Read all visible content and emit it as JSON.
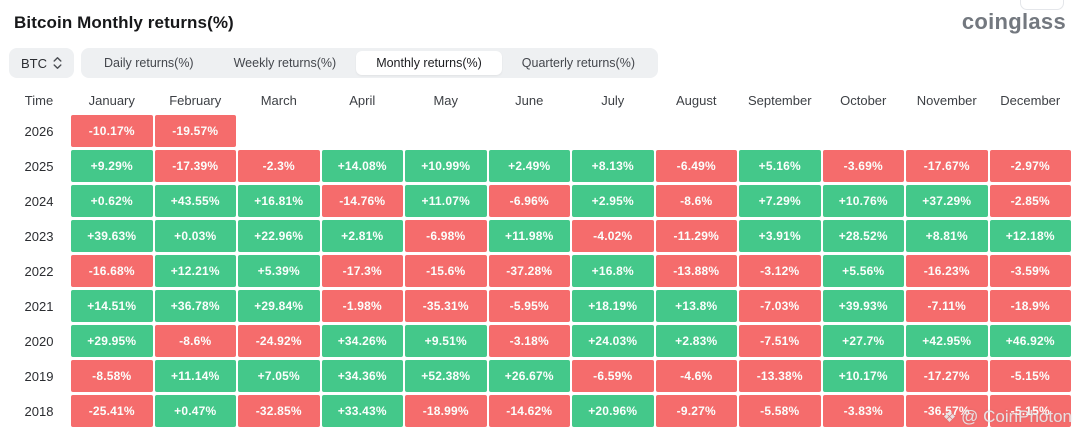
{
  "page": {
    "title": "Bitcoin Monthly returns(%)",
    "logo": "coinglass"
  },
  "toolbar": {
    "symbol": "BTC",
    "tabs": [
      {
        "label": "Daily returns(%)",
        "active": false
      },
      {
        "label": "Weekly returns(%)",
        "active": false
      },
      {
        "label": "Monthly returns(%)",
        "active": true
      },
      {
        "label": "Quarterly returns(%)",
        "active": false
      }
    ]
  },
  "table": {
    "time_header": "Time",
    "months": [
      "January",
      "February",
      "March",
      "April",
      "May",
      "June",
      "July",
      "August",
      "September",
      "October",
      "November",
      "December"
    ],
    "rows": [
      {
        "year": "2026",
        "cells": [
          "-10.17%",
          "-19.57%",
          null,
          null,
          null,
          null,
          null,
          null,
          null,
          null,
          null,
          null
        ]
      },
      {
        "year": "2025",
        "cells": [
          "+9.29%",
          "-17.39%",
          "-2.3%",
          "+14.08%",
          "+10.99%",
          "+2.49%",
          "+8.13%",
          "-6.49%",
          "+5.16%",
          "-3.69%",
          "-17.67%",
          "-2.97%"
        ]
      },
      {
        "year": "2024",
        "cells": [
          "+0.62%",
          "+43.55%",
          "+16.81%",
          "-14.76%",
          "+11.07%",
          "-6.96%",
          "+2.95%",
          "-8.6%",
          "+7.29%",
          "+10.76%",
          "+37.29%",
          "-2.85%"
        ]
      },
      {
        "year": "2023",
        "cells": [
          "+39.63%",
          "+0.03%",
          "+22.96%",
          "+2.81%",
          "-6.98%",
          "+11.98%",
          "-4.02%",
          "-11.29%",
          "+3.91%",
          "+28.52%",
          "+8.81%",
          "+12.18%"
        ]
      },
      {
        "year": "2022",
        "cells": [
          "-16.68%",
          "+12.21%",
          "+5.39%",
          "-17.3%",
          "-15.6%",
          "-37.28%",
          "+16.8%",
          "-13.88%",
          "-3.12%",
          "+5.56%",
          "-16.23%",
          "-3.59%"
        ]
      },
      {
        "year": "2021",
        "cells": [
          "+14.51%",
          "+36.78%",
          "+29.84%",
          "-1.98%",
          "-35.31%",
          "-5.95%",
          "+18.19%",
          "+13.8%",
          "-7.03%",
          "+39.93%",
          "-7.11%",
          "-18.9%"
        ]
      },
      {
        "year": "2020",
        "cells": [
          "+29.95%",
          "-8.6%",
          "-24.92%",
          "+34.26%",
          "+9.51%",
          "-3.18%",
          "+24.03%",
          "+2.83%",
          "-7.51%",
          "+27.7%",
          "+42.95%",
          "+46.92%"
        ]
      },
      {
        "year": "2019",
        "cells": [
          "-8.58%",
          "+11.14%",
          "+7.05%",
          "+34.36%",
          "+52.38%",
          "+26.67%",
          "-6.59%",
          "-4.6%",
          "-13.38%",
          "+10.17%",
          "-17.27%",
          "-5.15%"
        ]
      },
      {
        "year": "2018",
        "cells": [
          "-25.41%",
          "+0.47%",
          "-32.85%",
          "+33.43%",
          "-18.99%",
          "-14.62%",
          "+20.96%",
          "-9.27%",
          "-5.58%",
          "-3.83%",
          "-36.57%",
          "-5.15%"
        ]
      }
    ]
  },
  "watermark": {
    "icon": "❖",
    "text": "@ CoinPhoton"
  },
  "colors": {
    "positive": "#44c88a",
    "negative": "#f56c6c"
  },
  "chart_data": {
    "type": "heatmap",
    "title": "Bitcoin Monthly returns(%)",
    "x": [
      "January",
      "February",
      "March",
      "April",
      "May",
      "June",
      "July",
      "August",
      "September",
      "October",
      "November",
      "December"
    ],
    "y": [
      "2026",
      "2025",
      "2024",
      "2023",
      "2022",
      "2021",
      "2020",
      "2019",
      "2018"
    ],
    "values": [
      [
        -10.17,
        -19.57,
        null,
        null,
        null,
        null,
        null,
        null,
        null,
        null,
        null,
        null
      ],
      [
        9.29,
        -17.39,
        -2.3,
        14.08,
        10.99,
        2.49,
        8.13,
        -6.49,
        5.16,
        -3.69,
        -17.67,
        -2.97
      ],
      [
        0.62,
        43.55,
        16.81,
        -14.76,
        11.07,
        -6.96,
        2.95,
        -8.6,
        7.29,
        10.76,
        37.29,
        -2.85
      ],
      [
        39.63,
        0.03,
        22.96,
        2.81,
        -6.98,
        11.98,
        -4.02,
        -11.29,
        3.91,
        28.52,
        8.81,
        12.18
      ],
      [
        -16.68,
        12.21,
        5.39,
        -17.3,
        -15.6,
        -37.28,
        16.8,
        -13.88,
        -3.12,
        5.56,
        -16.23,
        -3.59
      ],
      [
        14.51,
        36.78,
        29.84,
        -1.98,
        -35.31,
        -5.95,
        18.19,
        13.8,
        -7.03,
        39.93,
        -7.11,
        -18.9
      ],
      [
        29.95,
        -8.6,
        -24.92,
        34.26,
        9.51,
        -3.18,
        24.03,
        2.83,
        -7.51,
        27.7,
        42.95,
        46.92
      ],
      [
        -8.58,
        11.14,
        7.05,
        34.36,
        52.38,
        26.67,
        -6.59,
        -4.6,
        -13.38,
        10.17,
        -17.27,
        -5.15
      ],
      [
        -25.41,
        0.47,
        -32.85,
        33.43,
        -18.99,
        -14.62,
        20.96,
        -9.27,
        -5.58,
        -3.83,
        -36.57,
        -5.15
      ]
    ],
    "legend": "green = positive monthly return, red = negative monthly return"
  }
}
